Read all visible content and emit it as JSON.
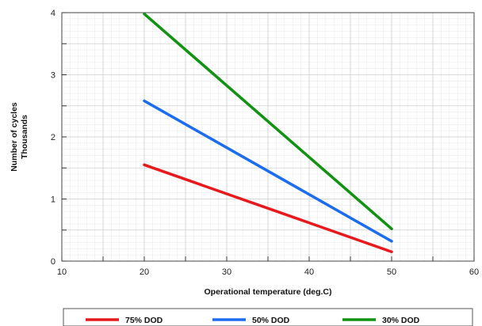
{
  "chart_data": {
    "type": "line",
    "xlabel": "Operational temperature (deg.C)",
    "ylabel": [
      "Number of cycles",
      "Thousands"
    ],
    "xlim": [
      10,
      60
    ],
    "ylim": [
      0,
      4
    ],
    "x_ticks": [
      "10",
      "20",
      "30",
      "40",
      "50",
      "60"
    ],
    "y_ticks": [
      "0",
      "1",
      "2",
      "3",
      "4"
    ],
    "grid": true,
    "legend_position": "bottom",
    "series": [
      {
        "name": "75% DOD",
        "color": "#e8191c",
        "x": [
          20,
          50
        ],
        "y": [
          1.55,
          0.15
        ]
      },
      {
        "name": "50% DOD",
        "color": "#1a6cf0",
        "x": [
          20,
          50
        ],
        "y": [
          2.58,
          0.32
        ]
      },
      {
        "name": "30% DOD",
        "color": "#119211",
        "x": [
          20,
          50
        ],
        "y": [
          3.98,
          0.52
        ]
      }
    ]
  }
}
